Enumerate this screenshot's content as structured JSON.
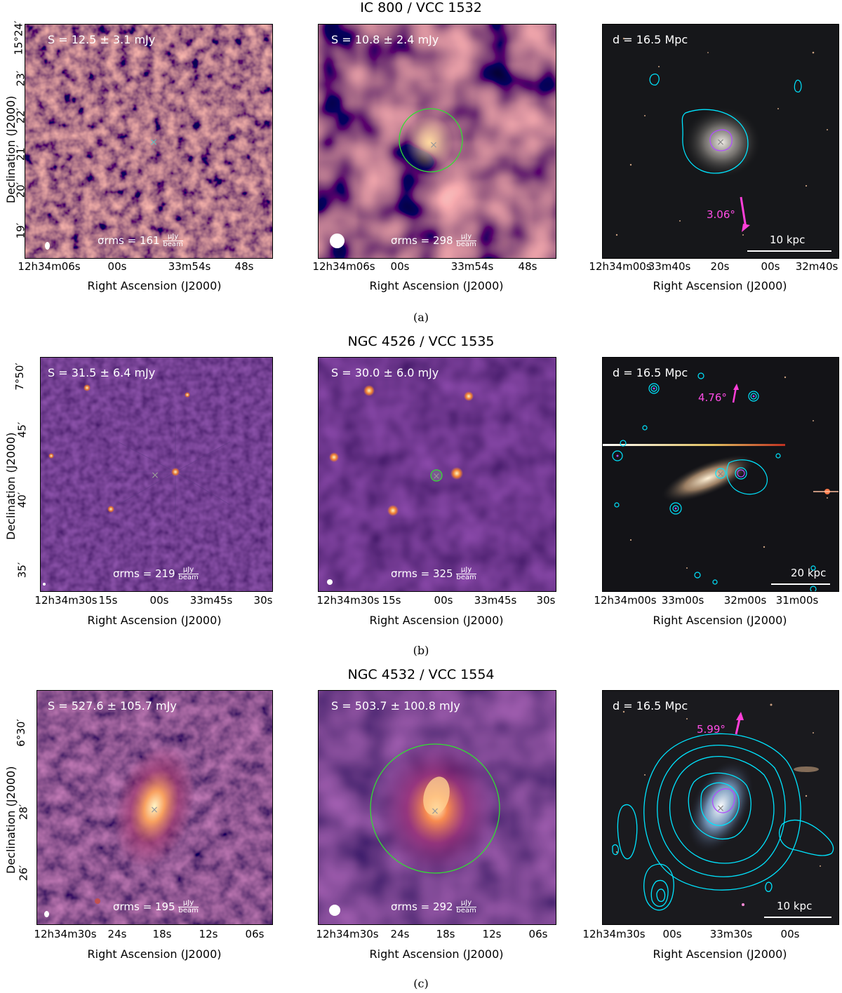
{
  "rows": [
    {
      "title": "IC 800 / VCC 1532",
      "caption": "(a)",
      "flux_left": "S = 12.5 ± 3.1 mJy",
      "flux_mid": "S = 10.8 ± 2.4 mJy",
      "distance": "d = 16.5 Mpc",
      "rms_left": "σrms = 161",
      "rms_mid": "σrms = 298",
      "arrow_label": "3.06°",
      "scale_label": "10 kpc",
      "yticks": [
        "15°24′",
        "23′",
        "22′",
        "21′",
        "20′",
        "19′"
      ],
      "xticks_left": [
        "12h34m06s",
        "00s",
        "33m54s",
        "48s"
      ],
      "xticks_mid": [
        "12h34m06s",
        "00s",
        "33m54s",
        "48s"
      ],
      "xticks_right": [
        "12h34m00s",
        "33m40s",
        "20s",
        "00s",
        "32m40s"
      ]
    },
    {
      "title": "NGC 4526 / VCC 1535",
      "caption": "(b)",
      "flux_left": "S = 31.5 ± 6.4 mJy",
      "flux_mid": "S = 30.0 ± 6.0 mJy",
      "distance": "d = 16.5 Mpc",
      "rms_left": "σrms = 219",
      "rms_mid": "σrms = 325",
      "arrow_label": "4.76°",
      "scale_label": "20 kpc",
      "yticks": [
        "7°50′",
        "45′",
        "40′",
        "35′"
      ],
      "xticks_left": [
        "12h34m30s",
        "15s",
        "00s",
        "33m45s",
        "30s"
      ],
      "xticks_mid": [
        "12h34m30s",
        "15s",
        "00s",
        "33m45s",
        "30s"
      ],
      "xticks_right": [
        "12h34m00s",
        "33m00s",
        "32m00s",
        "31m00s"
      ]
    },
    {
      "title": "NGC 4532 / VCC 1554",
      "caption": "(c)",
      "flux_left": "S = 527.6 ± 105.7 mJy",
      "flux_mid": "S = 503.7 ± 100.8 mJy",
      "distance": "d = 16.5 Mpc",
      "rms_left": "σrms = 195",
      "rms_mid": "σrms = 292",
      "arrow_label": "5.99°",
      "scale_label": "10 kpc",
      "yticks": [
        "6°30′",
        "28′",
        "26′"
      ],
      "xticks_left": [
        "12h34m30s",
        "24s",
        "18s",
        "12s",
        "06s"
      ],
      "xticks_mid": [
        "12h34m30s",
        "24s",
        "18s",
        "12s",
        "06s"
      ],
      "xticks_right": [
        "12h34m30s",
        "00s",
        "33m30s",
        "00s"
      ]
    }
  ],
  "axis": {
    "xlabel": "Right Ascension (J2000)",
    "ylabel": "Declination (J2000)",
    "rms_unit_num": "μJy",
    "rms_unit_den": "beam"
  },
  "colors": {
    "magma_dark": "#0a0516",
    "magma_mid": "#8c2981",
    "magma_bright": "#fcfdbf",
    "contour": "#00e5ff",
    "contour_inner": "#b04dff",
    "aperture": "#33dd33",
    "arrow": "#ff3fd8"
  }
}
